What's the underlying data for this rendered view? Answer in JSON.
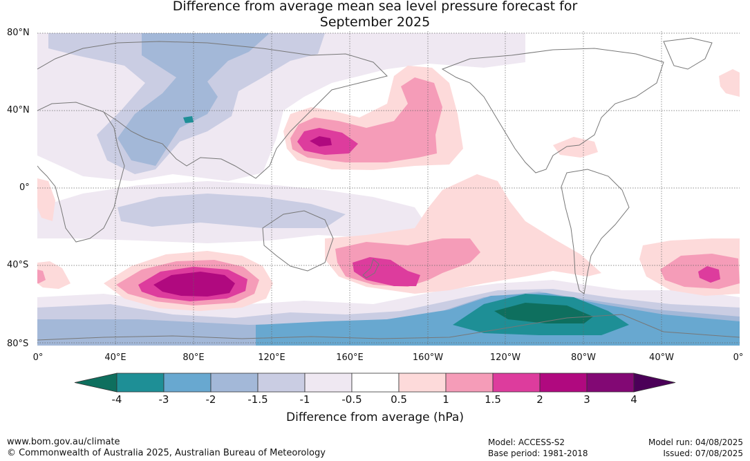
{
  "title": {
    "line1": "Difference from average mean sea level pressure forecast for",
    "line2": "September 2025"
  },
  "map": {
    "lat_labels": [
      "80°N",
      "40°N",
      "0°",
      "40°S",
      "80°S"
    ],
    "lon_labels": [
      "0°",
      "40°E",
      "80°E",
      "120°E",
      "160°E",
      "160°W",
      "120°W",
      "80°W",
      "40°W",
      "0°"
    ]
  },
  "colorbar": {
    "ticks": [
      "-4",
      "-3",
      "-2",
      "-1.5",
      "-1",
      "-0.5",
      "0.5",
      "1",
      "1.5",
      "2",
      "3",
      "4"
    ],
    "colors": [
      "#0e6f5e",
      "#1e8f96",
      "#68a8d0",
      "#a3b8d8",
      "#cacde3",
      "#efe8f2",
      "#ffffff",
      "#fddada",
      "#f59cb8",
      "#dd3c9d",
      "#b0097f",
      "#820874",
      "#4b0058"
    ],
    "caption": "Difference from average (hPa)"
  },
  "footer": {
    "url": "www.bom.gov.au/climate",
    "copyright": "© Commonwealth of Australia 2025, Australian Bureau of Meteorology",
    "model": "Model: ACCESS-S2",
    "base_period": "Base period: 1981-2018",
    "model_run": "Model run: 04/08/2025",
    "issued": "Issued: 07/08/2025"
  }
}
